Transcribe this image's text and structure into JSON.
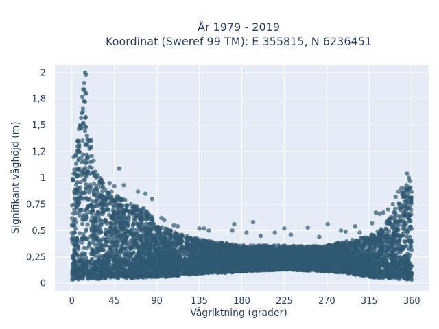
{
  "chart_data": {
    "type": "scatter",
    "title_line1": "År 1979 - 2019",
    "title_line2": "Koordinat (Sweref 99 TM): E 355815, N 6236451",
    "xlabel": "Vågriktning (grader)",
    "ylabel": "Signifikant våghöjd (m)",
    "xlim": [
      -18,
      378
    ],
    "ylim": [
      -0.07,
      2.07
    ],
    "xticks": [
      0,
      45,
      90,
      135,
      180,
      225,
      270,
      315,
      360
    ],
    "xtick_labels": [
      "0",
      "45",
      "90",
      "135",
      "180",
      "225",
      "270",
      "315",
      "360"
    ],
    "yticks": [
      0,
      0.25,
      0.5,
      0.75,
      1,
      1.25,
      1.5,
      1.75,
      2
    ],
    "ytick_labels": [
      "0",
      "0,25",
      "0,5",
      "0,75",
      "1",
      "1,2",
      "1,5",
      "1,8",
      "2"
    ],
    "grid": true,
    "marker_color": "#2f5870",
    "marker_opacity": 0.7,
    "background_color": "#e5ecf6",
    "envelope": {
      "x": [
        0,
        5,
        10,
        13,
        18,
        25,
        35,
        45,
        55,
        65,
        75,
        80,
        90,
        100,
        110,
        120,
        135,
        150,
        165,
        180,
        200,
        225,
        250,
        270,
        290,
        300,
        315,
        325,
        335,
        345,
        352,
        355,
        360
      ],
      "y_max": [
        1.0,
        1.3,
        1.65,
        1.95,
        1.5,
        1.1,
        0.92,
        0.85,
        0.8,
        0.75,
        0.72,
        0.7,
        0.55,
        0.52,
        0.48,
        0.45,
        0.42,
        0.4,
        0.38,
        0.36,
        0.36,
        0.36,
        0.35,
        0.36,
        0.4,
        0.42,
        0.45,
        0.5,
        0.6,
        0.75,
        0.9,
        0.95,
        0.9
      ],
      "y_min": [
        0.03,
        0.03,
        0.04,
        0.04,
        0.04,
        0.04,
        0.04,
        0.04,
        0.05,
        0.05,
        0.05,
        0.05,
        0.06,
        0.06,
        0.07,
        0.08,
        0.09,
        0.1,
        0.1,
        0.11,
        0.12,
        0.13,
        0.12,
        0.11,
        0.1,
        0.08,
        0.06,
        0.05,
        0.05,
        0.04,
        0.04,
        0.03,
        0.03
      ]
    },
    "outliers": [
      [
        14,
        2.0
      ],
      [
        15,
        1.98
      ],
      [
        13,
        1.9
      ],
      [
        12,
        1.84
      ],
      [
        15,
        1.8
      ],
      [
        11,
        1.77
      ],
      [
        14,
        1.72
      ],
      [
        9,
        1.48
      ],
      [
        12,
        1.52
      ],
      [
        7,
        1.35
      ],
      [
        6,
        1.3
      ],
      [
        16,
        1.4
      ],
      [
        18,
        1.35
      ],
      [
        4,
        1.22
      ],
      [
        2,
        1.2
      ],
      [
        20,
        1.15
      ],
      [
        22,
        1.05
      ],
      [
        25,
        1.02
      ],
      [
        50,
        1.09
      ],
      [
        30,
        0.95
      ],
      [
        40,
        0.95
      ],
      [
        45,
        0.92
      ],
      [
        55,
        0.93
      ],
      [
        70,
        0.87
      ],
      [
        78,
        0.85
      ],
      [
        85,
        0.8
      ],
      [
        95,
        0.62
      ],
      [
        98,
        0.6
      ],
      [
        108,
        0.55
      ],
      [
        112,
        0.54
      ],
      [
        135,
        0.52
      ],
      [
        140,
        0.52
      ],
      [
        145,
        0.5
      ],
      [
        170,
        0.5
      ],
      [
        172,
        0.56
      ],
      [
        185,
        0.48
      ],
      [
        192,
        0.58
      ],
      [
        200,
        0.45
      ],
      [
        215,
        0.48
      ],
      [
        225,
        0.52
      ],
      [
        232,
        0.46
      ],
      [
        250,
        0.53
      ],
      [
        262,
        0.44
      ],
      [
        271,
        0.56
      ],
      [
        285,
        0.5
      ],
      [
        290,
        0.49
      ],
      [
        300,
        0.54
      ],
      [
        305,
        0.48
      ],
      [
        318,
        0.57
      ],
      [
        322,
        0.67
      ],
      [
        326,
        0.66
      ],
      [
        330,
        0.67
      ],
      [
        335,
        0.7
      ],
      [
        340,
        0.75
      ],
      [
        343,
        0.82
      ],
      [
        346,
        0.87
      ],
      [
        349,
        0.9
      ],
      [
        351,
        0.86
      ],
      [
        355,
        1.04
      ],
      [
        357,
        1.0
      ],
      [
        358,
        0.97
      ]
    ]
  }
}
